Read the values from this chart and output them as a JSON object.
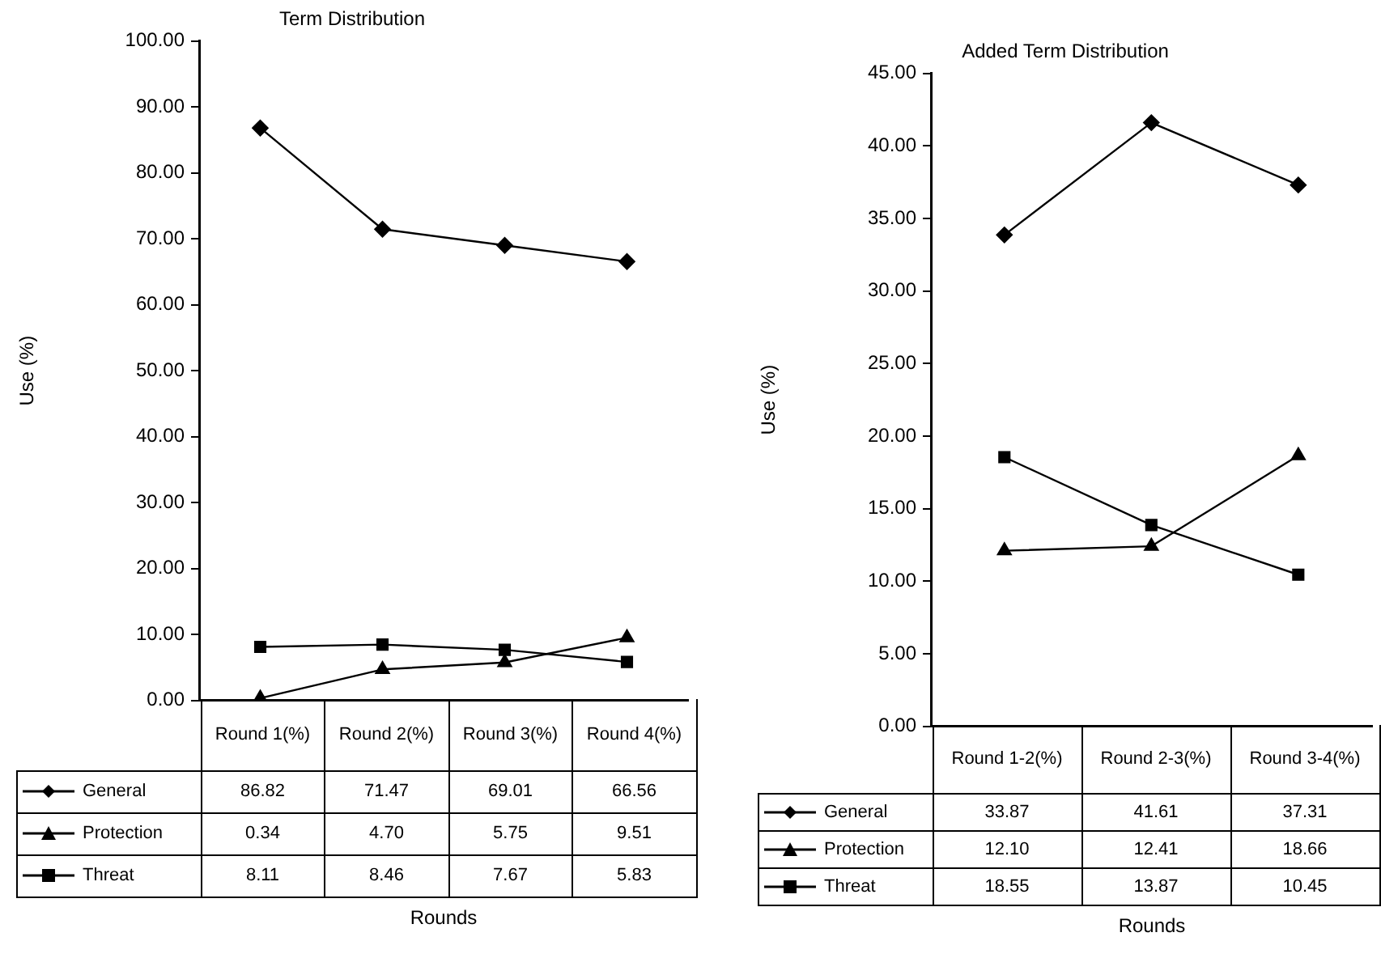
{
  "chart_data": [
    {
      "type": "line",
      "title": "Term Distribution",
      "xlabel": "Rounds",
      "ylabel": "Use (%)",
      "categories": [
        "Round 1(%)",
        "Round 2(%)",
        "Round 3(%)",
        "Round 4(%)"
      ],
      "series": [
        {
          "name": "General",
          "color": "#000000",
          "marker": "diamond",
          "values": [
            86.82,
            71.47,
            69.01,
            66.56
          ],
          "value_labels": [
            "86.82",
            "71.47",
            "69.01",
            "66.56"
          ]
        },
        {
          "name": "Protection",
          "color": "#000000",
          "marker": "triangle",
          "values": [
            0.34,
            4.7,
            5.75,
            9.51
          ],
          "value_labels": [
            "0.34",
            "4.70",
            "5.75",
            "9.51"
          ]
        },
        {
          "name": "Threat",
          "color": "#000000",
          "marker": "square",
          "values": [
            8.11,
            8.46,
            7.67,
            5.83
          ],
          "value_labels": [
            "8.11",
            "8.46",
            "7.67",
            "5.83"
          ]
        }
      ],
      "ylim": [
        0,
        100
      ],
      "yticks": [
        {
          "value": 0,
          "label": "0.00"
        },
        {
          "value": 10,
          "label": "10.00"
        },
        {
          "value": 20,
          "label": "20.00"
        },
        {
          "value": 30,
          "label": "30.00"
        },
        {
          "value": 40,
          "label": "40.00"
        },
        {
          "value": 50,
          "label": "50.00"
        },
        {
          "value": 60,
          "label": "60.00"
        },
        {
          "value": 70,
          "label": "70.00"
        },
        {
          "value": 80,
          "label": "80.00"
        },
        {
          "value": 90,
          "label": "90.00"
        },
        {
          "value": 100,
          "label": "100.00"
        }
      ],
      "legend": "bottom"
    },
    {
      "type": "line",
      "title": "Added Term Distribution",
      "xlabel": "Rounds",
      "ylabel": "Use (%)",
      "categories": [
        "Round 1-2(%)",
        "Round 2-3(%)",
        "Round 3-4(%)"
      ],
      "series": [
        {
          "name": "General",
          "color": "#000000",
          "marker": "diamond",
          "values": [
            33.87,
            41.61,
            37.31
          ],
          "value_labels": [
            "33.87",
            "41.61",
            "37.31"
          ]
        },
        {
          "name": "Protection",
          "color": "#000000",
          "marker": "triangle",
          "values": [
            12.1,
            12.41,
            18.66
          ],
          "value_labels": [
            "12.10",
            "12.41",
            "18.66"
          ]
        },
        {
          "name": "Threat",
          "color": "#000000",
          "marker": "square",
          "values": [
            18.55,
            13.87,
            10.45
          ],
          "value_labels": [
            "18.55",
            "13.87",
            "10.45"
          ]
        }
      ],
      "ylim": [
        0,
        45
      ],
      "yticks": [
        {
          "value": 0,
          "label": "0.00"
        },
        {
          "value": 5,
          "label": "5.00"
        },
        {
          "value": 10,
          "label": "10.00"
        },
        {
          "value": 15,
          "label": "15.00"
        },
        {
          "value": 20,
          "label": "20.00"
        },
        {
          "value": 25,
          "label": "25.00"
        },
        {
          "value": 30,
          "label": "30.00"
        },
        {
          "value": 35,
          "label": "35.00"
        },
        {
          "value": 40,
          "label": "40.00"
        },
        {
          "value": 45,
          "label": "45.00"
        }
      ],
      "legend": "bottom"
    }
  ]
}
